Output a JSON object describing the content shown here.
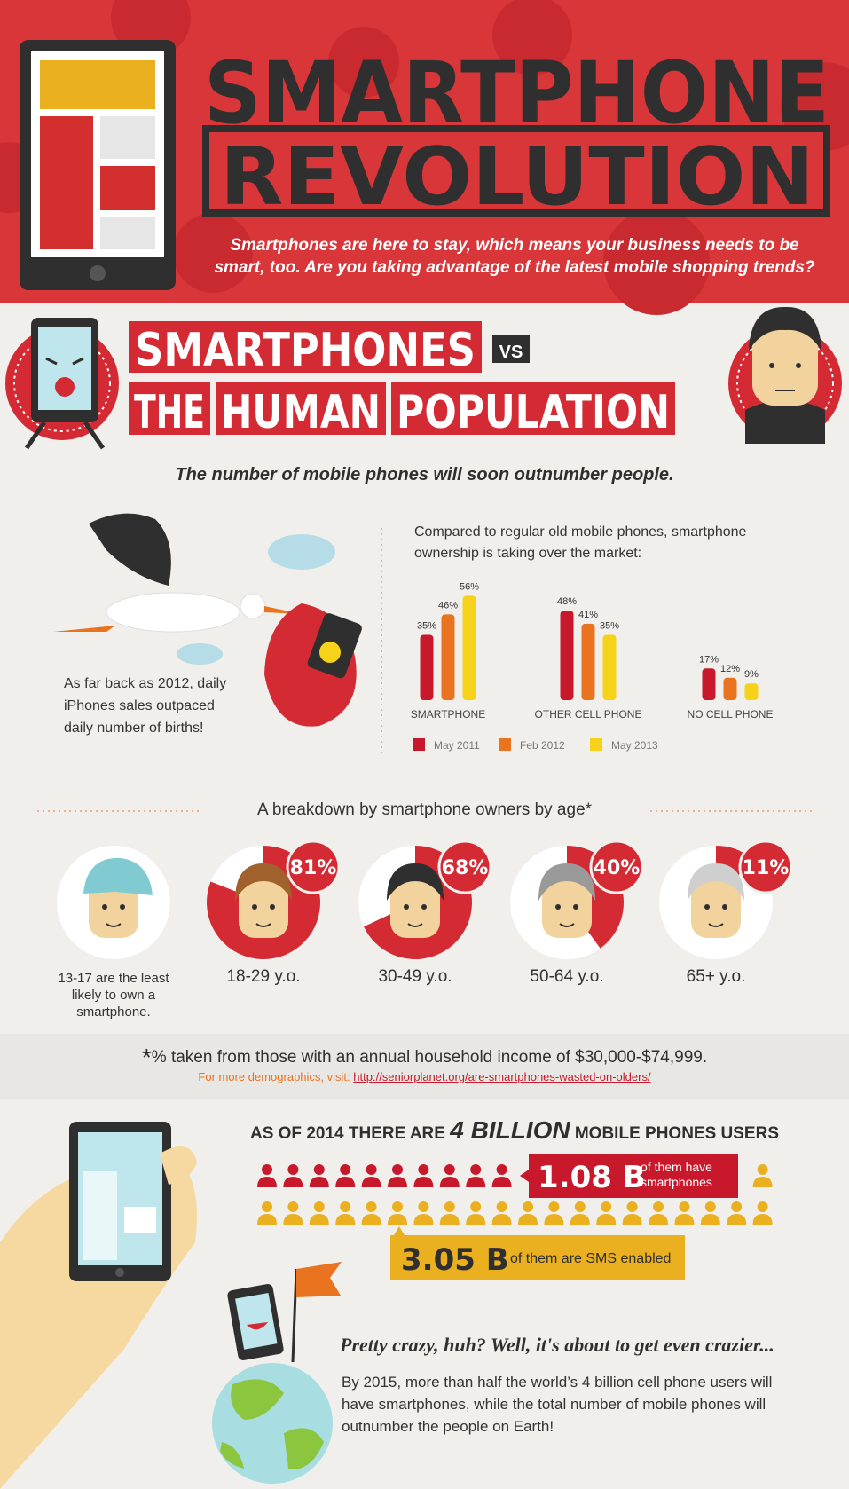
{
  "header": {
    "title_line1": "SMARTPHONE",
    "title_line2": "REVOLUTION",
    "subtitle": "Smartphones are here to stay, which means your business needs to be smart, too. Are you taking advantage of the latest mobile shopping trends?"
  },
  "versus": {
    "line1": "SMARTPHONES",
    "vs": "VS",
    "line2_words": [
      "THE",
      "HUMAN",
      "POPULATION"
    ]
  },
  "tagline": "The number of mobile phones will soon outnumber people.",
  "births_note": "As far back as 2012, daily iPhones sales outpaced daily number of births!",
  "chart_data": {
    "type": "bar",
    "title": "Compared to regular old mobile phones, smartphone ownership is taking over the market:",
    "categories": [
      "SMARTPHONE",
      "OTHER CELL PHONE",
      "NO CELL PHONE"
    ],
    "series": [
      {
        "name": "May 2011",
        "color": "#c8192c",
        "values": [
          35,
          48,
          17
        ],
        "value_labels": [
          "35%",
          "48%",
          "17%"
        ]
      },
      {
        "name": "Feb 2012",
        "color": "#e9731e",
        "values": [
          46,
          41,
          12
        ],
        "value_labels": [
          "46%",
          "41%",
          "12%"
        ]
      },
      {
        "name": "May 2013",
        "color": "#f6d21a",
        "values": [
          56,
          35,
          9
        ],
        "value_labels": [
          "56%",
          "35%",
          "9%"
        ]
      }
    ]
  },
  "age_breakdown": {
    "title": "A breakdown by smartphone owners by age*",
    "groups": [
      {
        "label": "13-17 are the least likely to own a smartphone."
      },
      {
        "label": "18-29 y.o.",
        "value": 81,
        "value_label": "81%"
      },
      {
        "label": "30-49 y.o.",
        "value": 68,
        "value_label": "68%"
      },
      {
        "label": "50-64 y.o.",
        "value": 40,
        "value_label": "40%"
      },
      {
        "label": "65+ y.o.",
        "value": 11,
        "value_label": "11%"
      }
    ]
  },
  "footnote": {
    "asterisk": "*",
    "text": "% taken from those with an annual household income of $30,000-$74,999.",
    "more": "For more demographics, visit:",
    "link": "http://seniorplanet.org/are-smartphones-wasted-on-olders/"
  },
  "users": {
    "heading_pre": "AS OF 2014 THERE ARE",
    "heading_big": "4 BILLION",
    "heading_post": "MOBILE PHONES USERS",
    "smartphones": {
      "value": "1.08 B",
      "text": "of them have smartphones"
    },
    "sms": {
      "value": "3.05 B",
      "text": "of them are SMS enabled"
    }
  },
  "closing": {
    "heading": "Pretty crazy, huh? Well, it's about to get even crazier...",
    "text": "By 2015, more than half the world’s 4 billion cell phone users will have smartphones, while the total number of mobile phones will outnumber the people on Earth!"
  }
}
